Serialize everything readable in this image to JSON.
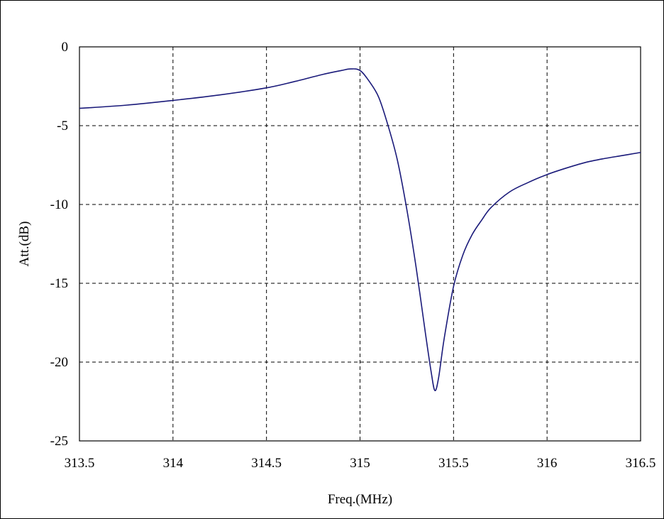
{
  "chart_data": {
    "type": "line",
    "title": "",
    "xlabel": "Freq.(MHz)",
    "ylabel": "Att.(dB)",
    "xlim": [
      313.5,
      316.5
    ],
    "ylim": [
      -25,
      0
    ],
    "x_ticks": [
      313.5,
      314,
      314.5,
      315,
      315.5,
      316,
      316.5
    ],
    "x_tick_labels": [
      "313.5",
      "314",
      "314.5",
      "315",
      "315.5",
      "316",
      "316.5"
    ],
    "y_ticks": [
      0,
      -5,
      -10,
      -15,
      -20,
      -25
    ],
    "y_tick_labels": [
      "0",
      "-5",
      "-10",
      "-15",
      "-20",
      "-25"
    ],
    "grid": true,
    "grid_style": "dashed",
    "line_color": "#1a1a7a",
    "series": [
      {
        "x": [
          313.5,
          313.75,
          314.0,
          314.25,
          314.5,
          314.65,
          314.8,
          314.9,
          314.95,
          315.0,
          315.05,
          315.1,
          315.15,
          315.2,
          315.25,
          315.3,
          315.35,
          315.38,
          315.4,
          315.42,
          315.45,
          315.5,
          315.55,
          315.6,
          315.65,
          315.7,
          315.8,
          315.9,
          316.0,
          316.1,
          316.2,
          316.3,
          316.4,
          316.5
        ],
        "y": [
          -3.9,
          -3.7,
          -3.4,
          -3.05,
          -2.6,
          -2.2,
          -1.75,
          -1.5,
          -1.4,
          -1.5,
          -2.2,
          -3.2,
          -5.0,
          -7.2,
          -10.3,
          -14.0,
          -18.2,
          -20.6,
          -21.8,
          -21.0,
          -18.5,
          -15.2,
          -13.2,
          -11.9,
          -11.0,
          -10.2,
          -9.2,
          -8.6,
          -8.1,
          -7.7,
          -7.35,
          -7.1,
          -6.9,
          -6.7
        ]
      }
    ]
  }
}
